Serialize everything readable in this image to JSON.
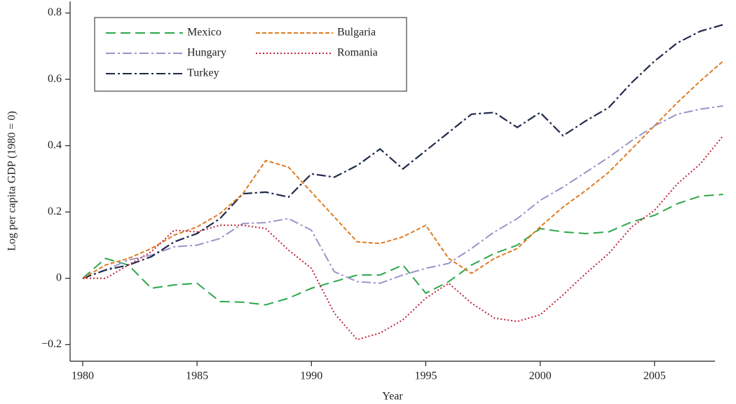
{
  "chart_data": {
    "type": "line",
    "x_label": "Year",
    "y_label": "Log per capita GDP (1980 = 0)",
    "x": [
      1980,
      1981,
      1982,
      1983,
      1984,
      1985,
      1986,
      1987,
      1988,
      1989,
      1990,
      1991,
      1992,
      1993,
      1994,
      1995,
      1996,
      1997,
      1998,
      1999,
      2000,
      2001,
      2002,
      2003,
      2004,
      2005,
      2006,
      2007,
      2008
    ],
    "xlim": [
      1979.45,
      2008.5
    ],
    "xticks": [
      1980,
      1985,
      1990,
      1995,
      2000,
      2005
    ],
    "ylim": [
      -0.25,
      0.835
    ],
    "yticks": [
      {
        "value": -0.2,
        "label": "−0.2"
      },
      0,
      0.2,
      0.4,
      0.6,
      0.8
    ],
    "grid": false,
    "legend": "upper left",
    "series": [
      {
        "name": "Mexico",
        "color": "#2ca84a",
        "linestyle": "longdash",
        "values": [
          0,
          0.06,
          0.04,
          -0.03,
          -0.02,
          -0.015,
          -0.07,
          -0.072,
          -0.08,
          -0.06,
          -0.03,
          -0.01,
          0.01,
          0.01,
          0.04,
          -0.045,
          -0.01,
          0.04,
          0.075,
          0.1,
          0.15,
          0.14,
          0.135,
          0.14,
          0.17,
          0.19,
          0.225,
          0.248,
          0.253
        ]
      },
      {
        "name": "Hungary",
        "color": "#9b93c8",
        "linestyle": "dashdot",
        "values": [
          0,
          0.025,
          0.055,
          0.07,
          0.095,
          0.1,
          0.12,
          0.165,
          0.168,
          0.18,
          0.145,
          0.02,
          -0.01,
          -0.015,
          0.01,
          0.03,
          0.045,
          0.09,
          0.14,
          0.18,
          0.235,
          0.275,
          0.32,
          0.365,
          0.415,
          0.46,
          0.495,
          0.51,
          0.52
        ]
      },
      {
        "name": "Turkey",
        "color": "#1f2a4a",
        "linestyle": "dashdot",
        "values": [
          0,
          0.025,
          0.04,
          0.065,
          0.11,
          0.135,
          0.18,
          0.255,
          0.26,
          0.245,
          0.315,
          0.305,
          0.34,
          0.39,
          0.33,
          0.385,
          0.44,
          0.495,
          0.5,
          0.455,
          0.5,
          0.43,
          0.475,
          0.515,
          0.59,
          0.655,
          0.71,
          0.745,
          0.765
        ]
      },
      {
        "name": "Bulgaria",
        "color": "#e07b22",
        "linestyle": "dashed",
        "values": [
          0,
          0.04,
          0.06,
          0.09,
          0.13,
          0.155,
          0.195,
          0.255,
          0.355,
          0.335,
          0.26,
          0.185,
          0.11,
          0.105,
          0.125,
          0.16,
          0.06,
          0.015,
          0.06,
          0.09,
          0.155,
          0.215,
          0.265,
          0.32,
          0.39,
          0.46,
          0.53,
          0.595,
          0.655
        ]
      },
      {
        "name": "Romania",
        "color": "#c0223a",
        "linestyle": "dotted",
        "values": [
          0,
          0,
          0.04,
          0.08,
          0.145,
          0.14,
          0.16,
          0.16,
          0.15,
          0.085,
          0.03,
          -0.105,
          -0.185,
          -0.165,
          -0.125,
          -0.06,
          -0.015,
          -0.075,
          -0.12,
          -0.13,
          -0.11,
          -0.05,
          0.015,
          0.075,
          0.155,
          0.205,
          0.285,
          0.345,
          0.43
        ]
      }
    ]
  }
}
